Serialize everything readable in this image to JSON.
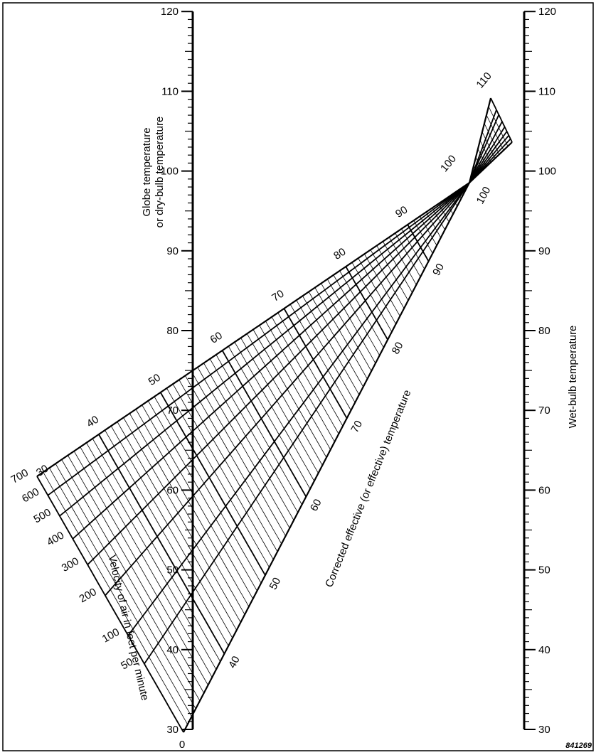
{
  "chart_data": {
    "type": "nomogram",
    "left_axis": {
      "title_line1": "Globe temperature",
      "title_line2": "or dry-bulb temperature",
      "min": 30,
      "max": 120,
      "labels": [
        "30",
        "40",
        "50",
        "60",
        "70",
        "80",
        "90",
        "100",
        "110",
        "120"
      ]
    },
    "right_axis": {
      "title": "Wet-bulb temperature",
      "min": 30,
      "max": 120,
      "labels": [
        "30",
        "40",
        "50",
        "60",
        "70",
        "80",
        "90",
        "100",
        "110",
        "120"
      ]
    },
    "effective_temperature": {
      "title": "Corrected effective (or effective) temperature",
      "values": [
        30,
        40,
        50,
        60,
        70,
        80,
        90,
        100,
        110
      ],
      "upper_labels": [
        "30",
        "40",
        "50",
        "60",
        "70",
        "80",
        "90",
        "100",
        "110"
      ],
      "lower_labels": [
        "40",
        "50",
        "60",
        "70",
        "80",
        "90",
        "100"
      ]
    },
    "air_velocity": {
      "title": "Velocity of air in feet per minute",
      "values": [
        0,
        50,
        100,
        200,
        300,
        400,
        500,
        600,
        700
      ],
      "labels": [
        "0",
        "50",
        "100",
        "200",
        "300",
        "400",
        "500",
        "600",
        "700"
      ]
    },
    "figure_id": "841269"
  }
}
